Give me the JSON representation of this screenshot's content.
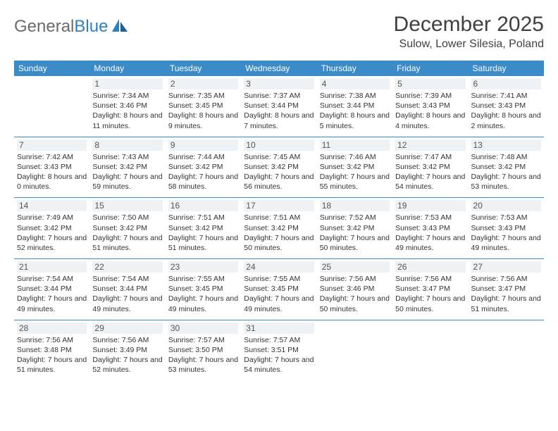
{
  "logo": {
    "text1": "General",
    "text2": "Blue"
  },
  "title": "December 2025",
  "location": "Sulow, Lower Silesia, Poland",
  "colors": {
    "header_bg": "#3b8bc9",
    "header_text": "#ffffff",
    "border": "#3b8bc9",
    "daynum_bg": "#eef2f5",
    "logo_gray": "#6b6b6b",
    "logo_blue": "#2f7fc1"
  },
  "weekdays": [
    "Sunday",
    "Monday",
    "Tuesday",
    "Wednesday",
    "Thursday",
    "Friday",
    "Saturday"
  ],
  "weeks": [
    [
      {
        "day": "",
        "sunrise": "",
        "sunset": "",
        "daylight": ""
      },
      {
        "day": "1",
        "sunrise": "Sunrise: 7:34 AM",
        "sunset": "Sunset: 3:46 PM",
        "daylight": "Daylight: 8 hours and 11 minutes."
      },
      {
        "day": "2",
        "sunrise": "Sunrise: 7:35 AM",
        "sunset": "Sunset: 3:45 PM",
        "daylight": "Daylight: 8 hours and 9 minutes."
      },
      {
        "day": "3",
        "sunrise": "Sunrise: 7:37 AM",
        "sunset": "Sunset: 3:44 PM",
        "daylight": "Daylight: 8 hours and 7 minutes."
      },
      {
        "day": "4",
        "sunrise": "Sunrise: 7:38 AM",
        "sunset": "Sunset: 3:44 PM",
        "daylight": "Daylight: 8 hours and 5 minutes."
      },
      {
        "day": "5",
        "sunrise": "Sunrise: 7:39 AM",
        "sunset": "Sunset: 3:43 PM",
        "daylight": "Daylight: 8 hours and 4 minutes."
      },
      {
        "day": "6",
        "sunrise": "Sunrise: 7:41 AM",
        "sunset": "Sunset: 3:43 PM",
        "daylight": "Daylight: 8 hours and 2 minutes."
      }
    ],
    [
      {
        "day": "7",
        "sunrise": "Sunrise: 7:42 AM",
        "sunset": "Sunset: 3:43 PM",
        "daylight": "Daylight: 8 hours and 0 minutes."
      },
      {
        "day": "8",
        "sunrise": "Sunrise: 7:43 AM",
        "sunset": "Sunset: 3:42 PM",
        "daylight": "Daylight: 7 hours and 59 minutes."
      },
      {
        "day": "9",
        "sunrise": "Sunrise: 7:44 AM",
        "sunset": "Sunset: 3:42 PM",
        "daylight": "Daylight: 7 hours and 58 minutes."
      },
      {
        "day": "10",
        "sunrise": "Sunrise: 7:45 AM",
        "sunset": "Sunset: 3:42 PM",
        "daylight": "Daylight: 7 hours and 56 minutes."
      },
      {
        "day": "11",
        "sunrise": "Sunrise: 7:46 AM",
        "sunset": "Sunset: 3:42 PM",
        "daylight": "Daylight: 7 hours and 55 minutes."
      },
      {
        "day": "12",
        "sunrise": "Sunrise: 7:47 AM",
        "sunset": "Sunset: 3:42 PM",
        "daylight": "Daylight: 7 hours and 54 minutes."
      },
      {
        "day": "13",
        "sunrise": "Sunrise: 7:48 AM",
        "sunset": "Sunset: 3:42 PM",
        "daylight": "Daylight: 7 hours and 53 minutes."
      }
    ],
    [
      {
        "day": "14",
        "sunrise": "Sunrise: 7:49 AM",
        "sunset": "Sunset: 3:42 PM",
        "daylight": "Daylight: 7 hours and 52 minutes."
      },
      {
        "day": "15",
        "sunrise": "Sunrise: 7:50 AM",
        "sunset": "Sunset: 3:42 PM",
        "daylight": "Daylight: 7 hours and 51 minutes."
      },
      {
        "day": "16",
        "sunrise": "Sunrise: 7:51 AM",
        "sunset": "Sunset: 3:42 PM",
        "daylight": "Daylight: 7 hours and 51 minutes."
      },
      {
        "day": "17",
        "sunrise": "Sunrise: 7:51 AM",
        "sunset": "Sunset: 3:42 PM",
        "daylight": "Daylight: 7 hours and 50 minutes."
      },
      {
        "day": "18",
        "sunrise": "Sunrise: 7:52 AM",
        "sunset": "Sunset: 3:42 PM",
        "daylight": "Daylight: 7 hours and 50 minutes."
      },
      {
        "day": "19",
        "sunrise": "Sunrise: 7:53 AM",
        "sunset": "Sunset: 3:43 PM",
        "daylight": "Daylight: 7 hours and 49 minutes."
      },
      {
        "day": "20",
        "sunrise": "Sunrise: 7:53 AM",
        "sunset": "Sunset: 3:43 PM",
        "daylight": "Daylight: 7 hours and 49 minutes."
      }
    ],
    [
      {
        "day": "21",
        "sunrise": "Sunrise: 7:54 AM",
        "sunset": "Sunset: 3:44 PM",
        "daylight": "Daylight: 7 hours and 49 minutes."
      },
      {
        "day": "22",
        "sunrise": "Sunrise: 7:54 AM",
        "sunset": "Sunset: 3:44 PM",
        "daylight": "Daylight: 7 hours and 49 minutes."
      },
      {
        "day": "23",
        "sunrise": "Sunrise: 7:55 AM",
        "sunset": "Sunset: 3:45 PM",
        "daylight": "Daylight: 7 hours and 49 minutes."
      },
      {
        "day": "24",
        "sunrise": "Sunrise: 7:55 AM",
        "sunset": "Sunset: 3:45 PM",
        "daylight": "Daylight: 7 hours and 49 minutes."
      },
      {
        "day": "25",
        "sunrise": "Sunrise: 7:56 AM",
        "sunset": "Sunset: 3:46 PM",
        "daylight": "Daylight: 7 hours and 50 minutes."
      },
      {
        "day": "26",
        "sunrise": "Sunrise: 7:56 AM",
        "sunset": "Sunset: 3:47 PM",
        "daylight": "Daylight: 7 hours and 50 minutes."
      },
      {
        "day": "27",
        "sunrise": "Sunrise: 7:56 AM",
        "sunset": "Sunset: 3:47 PM",
        "daylight": "Daylight: 7 hours and 51 minutes."
      }
    ],
    [
      {
        "day": "28",
        "sunrise": "Sunrise: 7:56 AM",
        "sunset": "Sunset: 3:48 PM",
        "daylight": "Daylight: 7 hours and 51 minutes."
      },
      {
        "day": "29",
        "sunrise": "Sunrise: 7:56 AM",
        "sunset": "Sunset: 3:49 PM",
        "daylight": "Daylight: 7 hours and 52 minutes."
      },
      {
        "day": "30",
        "sunrise": "Sunrise: 7:57 AM",
        "sunset": "Sunset: 3:50 PM",
        "daylight": "Daylight: 7 hours and 53 minutes."
      },
      {
        "day": "31",
        "sunrise": "Sunrise: 7:57 AM",
        "sunset": "Sunset: 3:51 PM",
        "daylight": "Daylight: 7 hours and 54 minutes."
      },
      {
        "day": "",
        "sunrise": "",
        "sunset": "",
        "daylight": ""
      },
      {
        "day": "",
        "sunrise": "",
        "sunset": "",
        "daylight": ""
      },
      {
        "day": "",
        "sunrise": "",
        "sunset": "",
        "daylight": ""
      }
    ]
  ]
}
